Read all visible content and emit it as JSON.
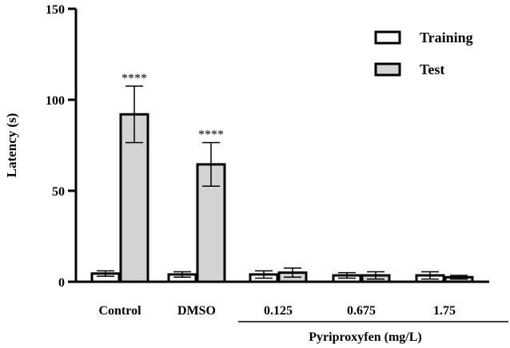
{
  "chart_data": {
    "type": "bar",
    "title": "",
    "xlabel": "",
    "ylabel": "Latency (s)",
    "ylim": [
      0,
      150
    ],
    "yticks": [
      0,
      50,
      100,
      150
    ],
    "categories": [
      "Control",
      "DMSO",
      "0.125",
      "0.675",
      "1.75"
    ],
    "group_label": {
      "text": "Pyriproxyfen (mg/L)",
      "categories": [
        "0.125",
        "0.675",
        "1.75"
      ]
    },
    "series": [
      {
        "name": "Training",
        "color": "#ffffff",
        "values": [
          4.5,
          4,
          4,
          3.5,
          3.5
        ],
        "errors": [
          1.5,
          1.5,
          2,
          1.5,
          2
        ]
      },
      {
        "name": "Test",
        "color": "#d3d3d3",
        "values": [
          92,
          64.5,
          5,
          3.5,
          2.5
        ],
        "errors": [
          15.5,
          12,
          2.5,
          2,
          1
        ]
      }
    ],
    "annotations": [
      {
        "category": "Control",
        "series": "Test",
        "text": "****"
      },
      {
        "category": "DMSO",
        "series": "Test",
        "text": "****"
      }
    ],
    "legend": {
      "position": "top-right"
    },
    "grid": false
  }
}
